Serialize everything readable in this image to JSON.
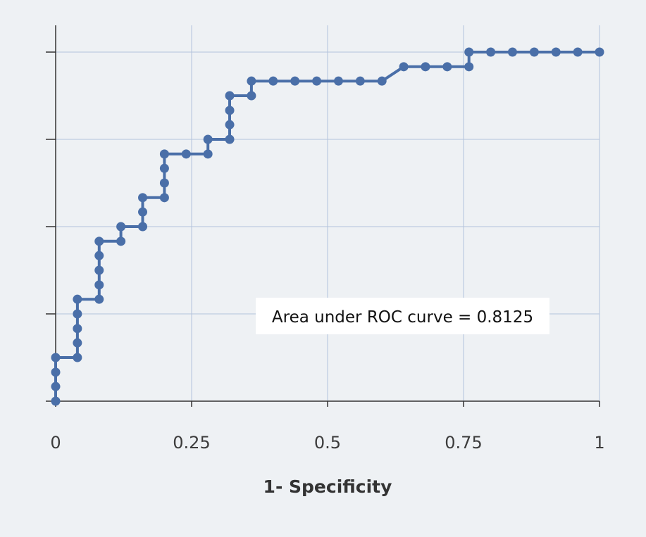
{
  "chart_data": {
    "type": "line",
    "title": "",
    "xlabel": "1- Specificity",
    "ylabel": "",
    "xlim": [
      0,
      1
    ],
    "ylim": [
      0,
      1
    ],
    "x_ticks": [
      "0",
      "0.25",
      "0.5",
      "0.75",
      "1"
    ],
    "y_ticks_count": 5,
    "grid": true,
    "annotation": "Area under ROC curve = 0.8125",
    "series": [
      {
        "points": [
          [
            0,
            0
          ],
          [
            0,
            0.042
          ],
          [
            0,
            0.083
          ],
          [
            0,
            0.125
          ],
          [
            0.04,
            0.125
          ],
          [
            0.04,
            0.167
          ],
          [
            0.04,
            0.208
          ],
          [
            0.04,
            0.25
          ],
          [
            0.04,
            0.292
          ],
          [
            0.08,
            0.292
          ],
          [
            0.08,
            0.333
          ],
          [
            0.08,
            0.375
          ],
          [
            0.08,
            0.417
          ],
          [
            0.08,
            0.458
          ],
          [
            0.12,
            0.458
          ],
          [
            0.12,
            0.5
          ],
          [
            0.16,
            0.5
          ],
          [
            0.16,
            0.542
          ],
          [
            0.16,
            0.583
          ],
          [
            0.2,
            0.583
          ],
          [
            0.2,
            0.625
          ],
          [
            0.2,
            0.667
          ],
          [
            0.2,
            0.708
          ],
          [
            0.24,
            0.708
          ],
          [
            0.28,
            0.708
          ],
          [
            0.28,
            0.75
          ],
          [
            0.32,
            0.75
          ],
          [
            0.32,
            0.792
          ],
          [
            0.32,
            0.833
          ],
          [
            0.32,
            0.875
          ],
          [
            0.36,
            0.875
          ],
          [
            0.36,
            0.917
          ],
          [
            0.4,
            0.917
          ],
          [
            0.44,
            0.917
          ],
          [
            0.48,
            0.917
          ],
          [
            0.52,
            0.917
          ],
          [
            0.56,
            0.917
          ],
          [
            0.6,
            0.917
          ],
          [
            0.64,
            0.958
          ],
          [
            0.68,
            0.958
          ],
          [
            0.72,
            0.958
          ],
          [
            0.76,
            0.958
          ],
          [
            0.76,
            1
          ],
          [
            0.8,
            1
          ],
          [
            0.84,
            1
          ],
          [
            0.88,
            1
          ],
          [
            0.92,
            1
          ],
          [
            0.96,
            1
          ],
          [
            1,
            1
          ]
        ]
      }
    ]
  },
  "colors": {
    "background": "#eef1f4",
    "line": "#4a6fa8",
    "grid": "#b3c3dc",
    "axis": "#333333",
    "annotation_box": "#ffffff"
  }
}
